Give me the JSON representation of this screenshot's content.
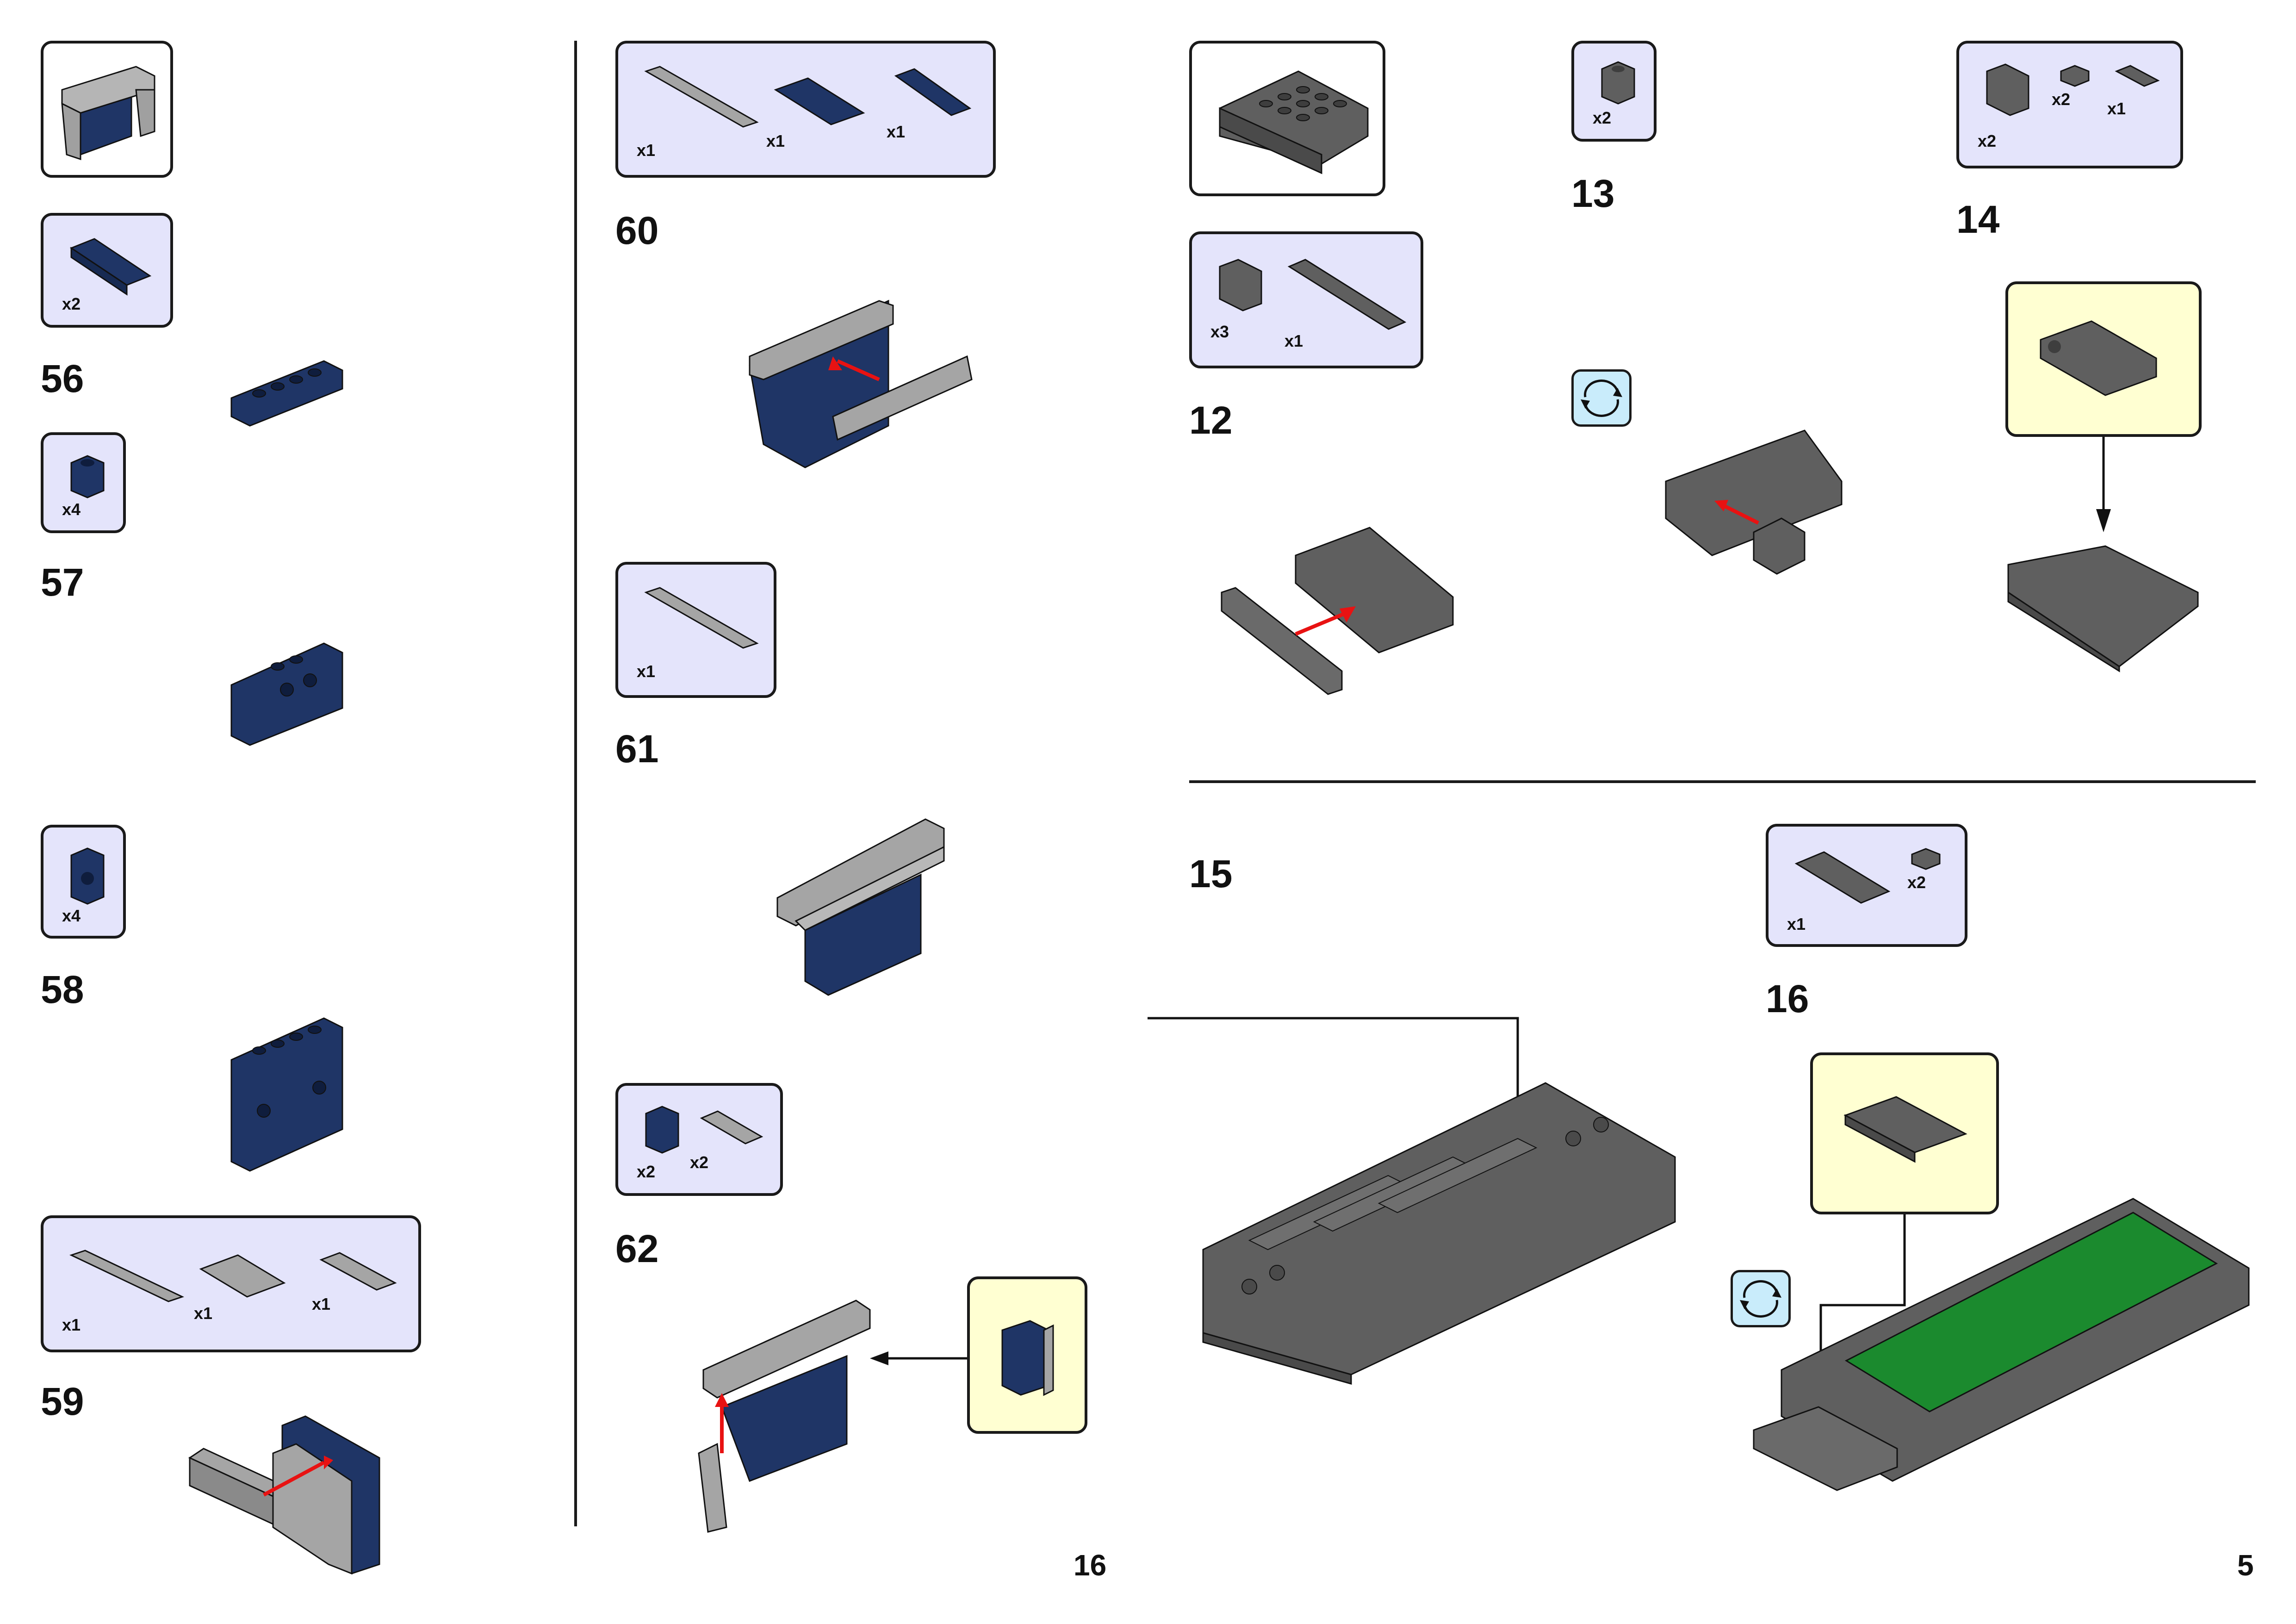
{
  "pages": {
    "left_page_number": "16",
    "right_page_number": "5"
  },
  "colors": {
    "dark_blue": "#1f3566",
    "light_gray": "#a5a5a5",
    "dark_gray": "#5f5f5f",
    "green": "#1b8a2e",
    "parts_box_bg": "#e4e4fb",
    "callout_bg": "#ffffd2",
    "rotate_icon_bg": "#c9ecfb",
    "arrow_red": "#e81212"
  },
  "steps": {
    "s56": {
      "number": "56",
      "parts": [
        {
          "qty": "x2",
          "part": "dark-blue-plate-1x4"
        }
      ]
    },
    "s57": {
      "number": "57",
      "parts": [
        {
          "qty": "x4",
          "part": "dark-blue-brick-1x1-with-stud-on-side"
        }
      ]
    },
    "s58": {
      "number": "58",
      "parts": [
        {
          "qty": "x4",
          "part": "dark-blue-brick-1x1-with-stud-on-side"
        }
      ]
    },
    "s59": {
      "number": "59",
      "parts": [
        {
          "qty": "x1",
          "part": "light-gray-tile-1x6"
        },
        {
          "qty": "x1",
          "part": "light-gray-tile-2x4"
        },
        {
          "qty": "x1",
          "part": "light-gray-tile-1x4"
        }
      ]
    },
    "s60": {
      "number": "60",
      "parts": [
        {
          "qty": "x1",
          "part": "light-gray-tile-1x6"
        },
        {
          "qty": "x1",
          "part": "dark-blue-tile-2x4"
        },
        {
          "qty": "x1",
          "part": "dark-blue-tile-1x4"
        }
      ]
    },
    "s61": {
      "number": "61",
      "parts": [
        {
          "qty": "x1",
          "part": "light-gray-tile-1x6"
        }
      ]
    },
    "s62": {
      "number": "62",
      "parts": [
        {
          "qty": "x2",
          "part": "dark-blue-brick-1x1-with-stud-on-side"
        },
        {
          "qty": "x2",
          "part": "light-gray-tile-1x3"
        }
      ]
    },
    "s12": {
      "number": "12",
      "parts": [
        {
          "qty": "x3",
          "part": "dark-gray-bracket"
        },
        {
          "qty": "x1",
          "part": "dark-gray-tile-1x6"
        }
      ]
    },
    "s13": {
      "number": "13",
      "parts": [
        {
          "qty": "x2",
          "part": "dark-gray-brick-1x1-with-stud-on-side"
        }
      ]
    },
    "s14": {
      "number": "14",
      "parts": [
        {
          "qty": "x2",
          "part": "dark-gray-bracket"
        },
        {
          "qty": "x2",
          "part": "dark-gray-plate-1x1"
        },
        {
          "qty": "x1",
          "part": "dark-gray-tile-1x2"
        }
      ]
    },
    "s15": {
      "number": "15"
    },
    "s16": {
      "number": "16",
      "parts": [
        {
          "qty": "x1",
          "part": "dark-gray-tile-2x4"
        },
        {
          "qty": "x2",
          "part": "dark-gray-plate-1x1"
        }
      ]
    }
  },
  "icons": {
    "rotate_icon_1": "rotate-model-icon",
    "rotate_icon_2": "rotate-model-icon"
  }
}
